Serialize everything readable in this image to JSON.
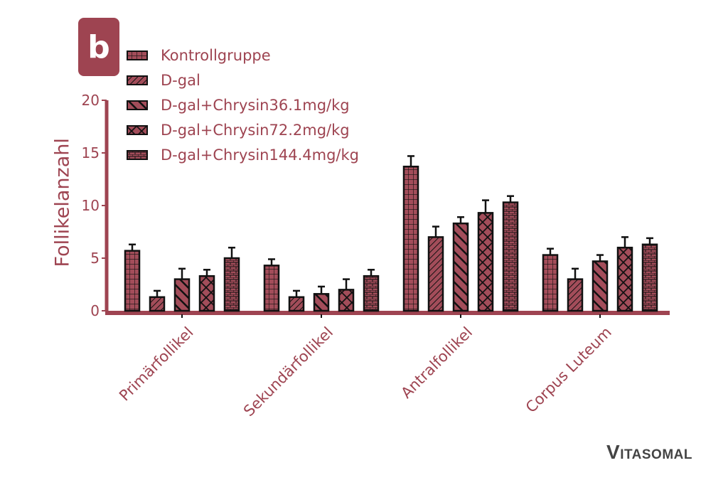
{
  "panel": {
    "label": "b"
  },
  "brand": {
    "first": "V",
    "rest": "ITASOMAL"
  },
  "colors": {
    "accent": "#9e4451",
    "bar_fill": "#a34d5a",
    "outline": "#111111",
    "logo": "#444444"
  },
  "chart_data": {
    "type": "bar",
    "title": "",
    "xlabel": "",
    "ylabel": "Follikelanzahl",
    "ylim": [
      0,
      20
    ],
    "yticks": [
      0,
      5,
      10,
      15,
      20
    ],
    "grid": false,
    "legend_position": "top-left",
    "categories": [
      "Primärfollikel",
      "Sekundärfollikel",
      "Antralfollikel",
      "Corpus Luteum"
    ],
    "series": [
      {
        "name": "Kontrollgruppe",
        "pattern": "grid",
        "values": [
          5.7,
          4.3,
          13.7,
          5.3
        ],
        "error": [
          0.6,
          0.6,
          1.0,
          0.6
        ]
      },
      {
        "name": "D-gal",
        "pattern": "diag-back",
        "values": [
          1.3,
          1.3,
          7.0,
          3.0
        ],
        "error": [
          0.6,
          0.6,
          1.0,
          1.0
        ]
      },
      {
        "name": "D-gal+Chrysin36.1mg/kg",
        "pattern": "diag-fwd",
        "values": [
          3.0,
          1.6,
          8.3,
          4.7
        ],
        "error": [
          1.0,
          0.7,
          0.6,
          0.6
        ]
      },
      {
        "name": "D-gal+Chrysin72.2mg/kg",
        "pattern": "crosshatch",
        "values": [
          3.3,
          2.0,
          9.3,
          6.0
        ],
        "error": [
          0.6,
          1.0,
          1.2,
          1.0
        ]
      },
      {
        "name": "D-gal+Chrysin144.4mg/kg",
        "pattern": "brick",
        "values": [
          5.0,
          3.3,
          10.3,
          6.3
        ],
        "error": [
          1.0,
          0.6,
          0.6,
          0.6
        ]
      }
    ]
  }
}
